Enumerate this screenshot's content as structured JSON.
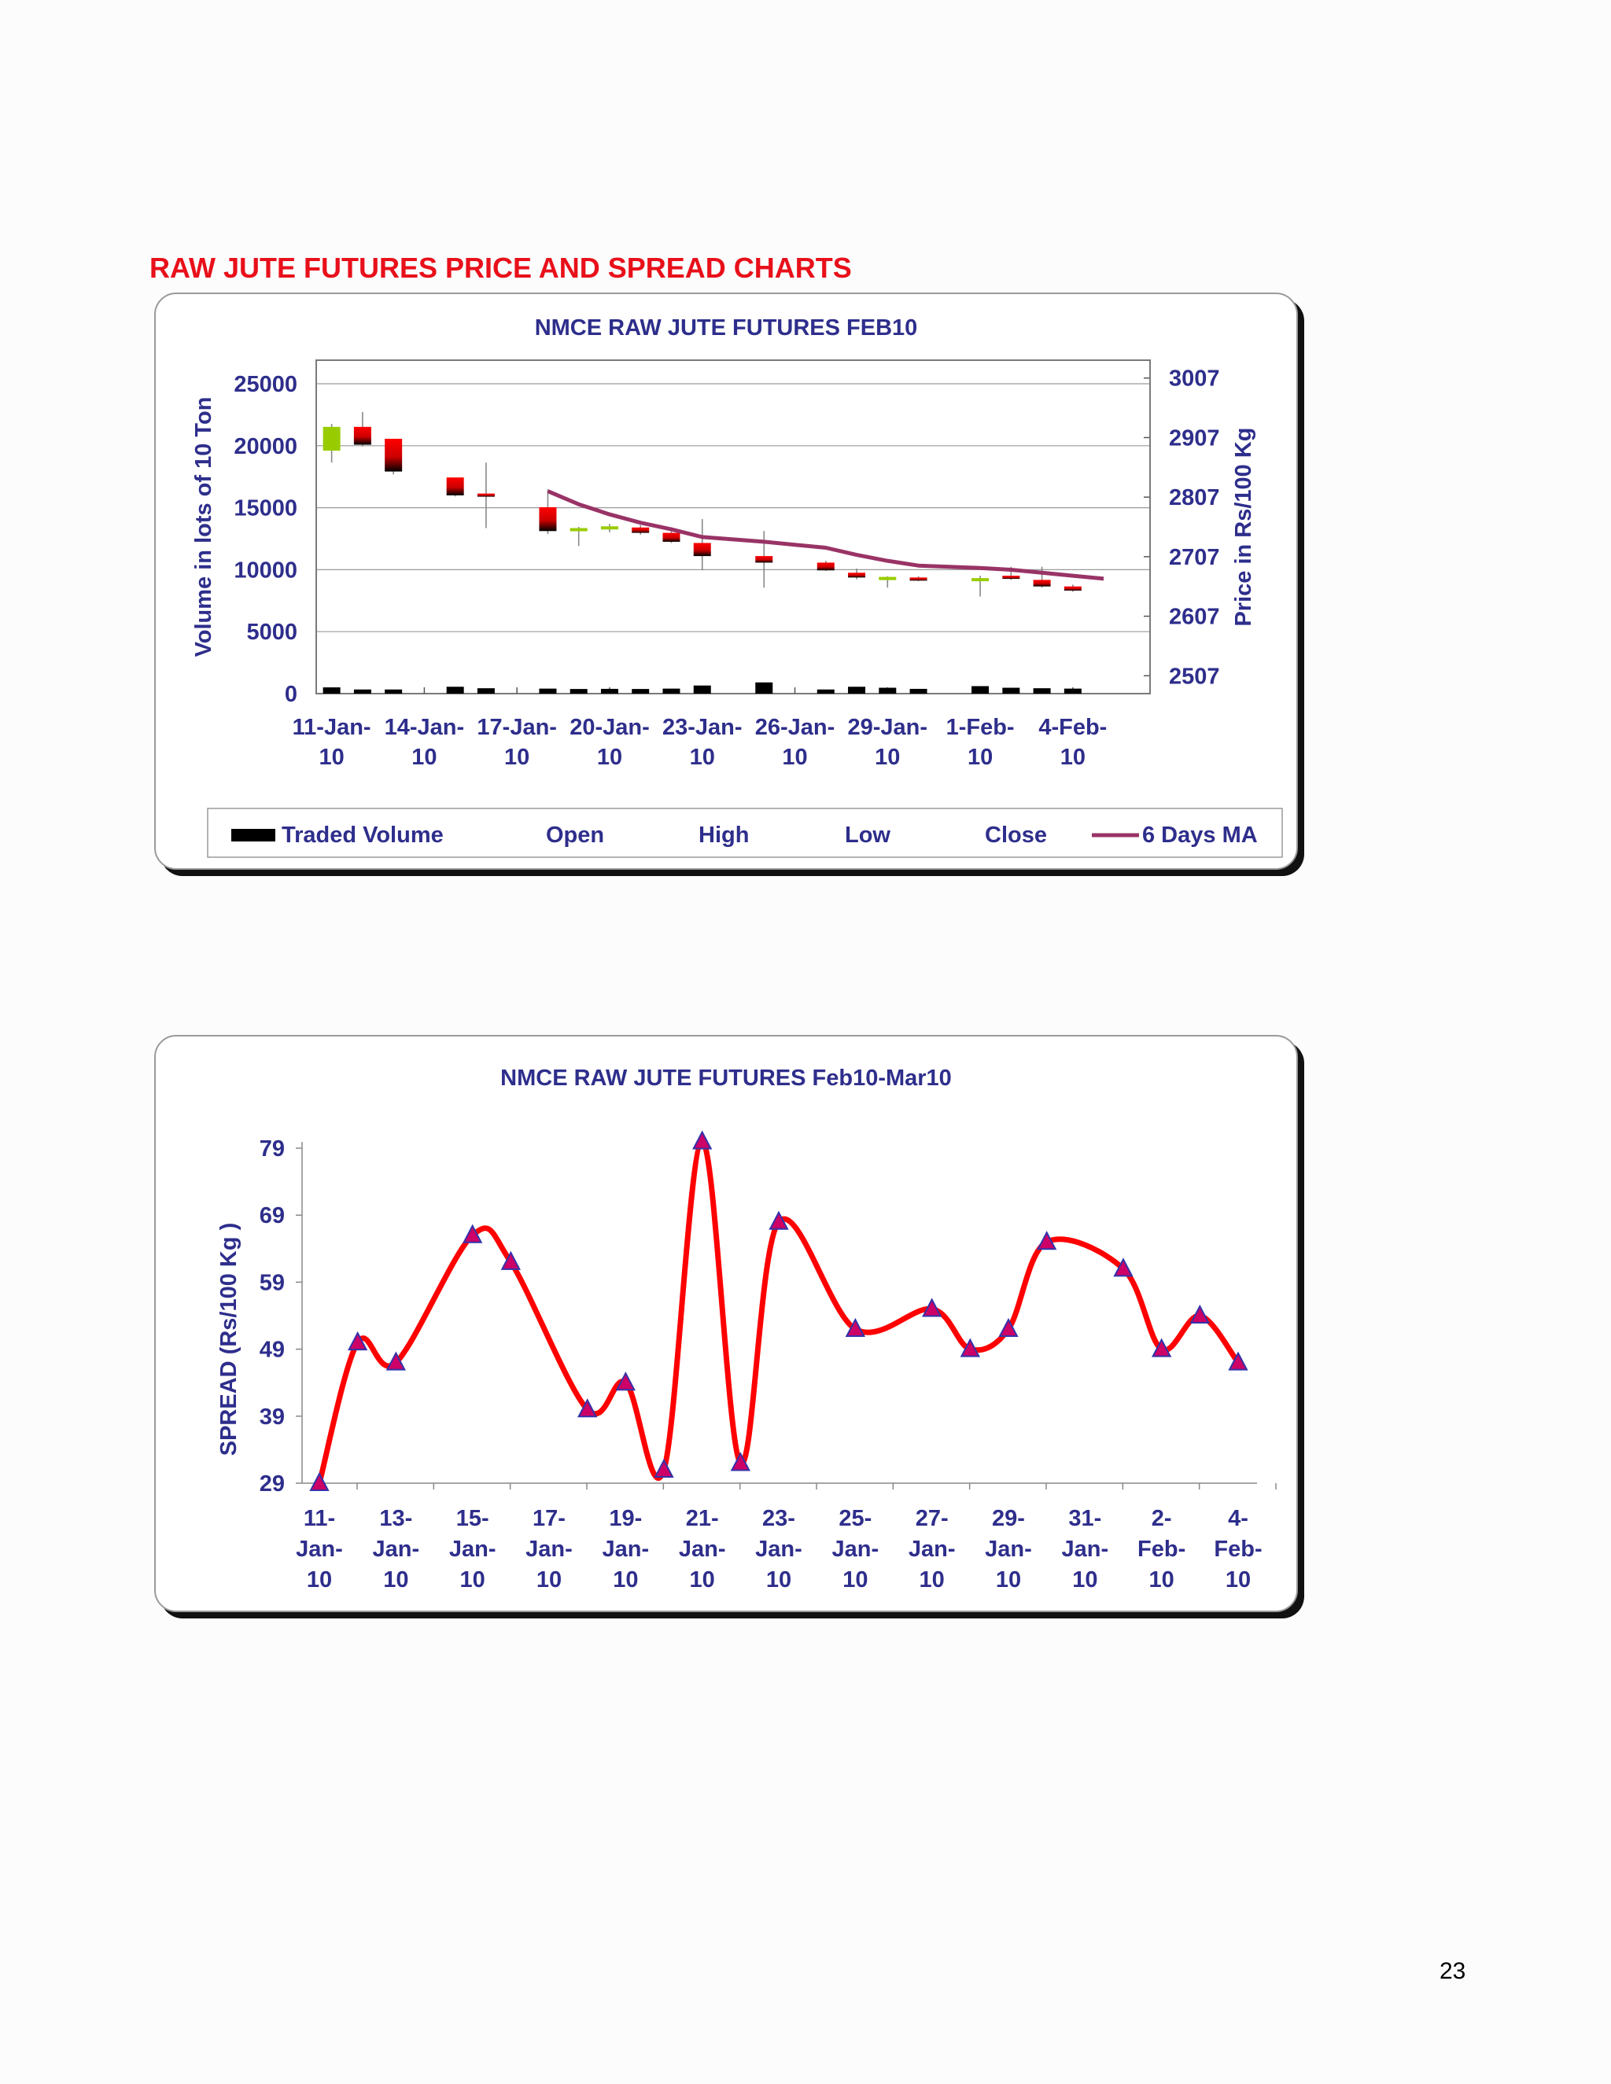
{
  "page": {
    "heading": "RAW JUTE FUTURES PRICE AND SPREAD CHARTS",
    "page_number": "23"
  },
  "chart_data": [
    {
      "type": "candlestick",
      "title": "NMCE RAW JUTE FUTURES FEB10",
      "y_left_label": "Volume in lots of 10 Ton",
      "y_right_label": "Price in Rs/100 Kg",
      "y_left_ticks": [
        "0",
        "5000",
        "10000",
        "15000",
        "20000",
        "25000"
      ],
      "y_left_range": [
        0,
        25000
      ],
      "y_right_ticks": [
        "2507",
        "2607",
        "2707",
        "2807",
        "2907",
        "3007"
      ],
      "y_right_range": [
        2477,
        3037
      ],
      "x_ticks": [
        [
          "11-Jan-",
          "10"
        ],
        [
          "14-Jan-",
          "10"
        ],
        [
          "17-Jan-",
          "10"
        ],
        [
          "20-Jan-",
          "10"
        ],
        [
          "23-Jan-",
          "10"
        ],
        [
          "26-Jan-",
          "10"
        ],
        [
          "29-Jan-",
          "10"
        ],
        [
          "1-Feb-",
          "10"
        ],
        [
          "4-Feb-",
          "10"
        ]
      ],
      "x_range_days": [
        11,
        37
      ],
      "legend": [
        "Traded Volume",
        "Open",
        "High",
        "Low",
        "Close",
        "6 Days MA"
      ],
      "grid": true,
      "colors": {
        "up": "#99cc00",
        "down": "#ff0000",
        "down_dark": "#000000",
        "ma": "#993366",
        "volume": "#000000"
      },
      "candles": [
        {
          "day": 11,
          "open": 2885,
          "close": 2925,
          "high": 2930,
          "low": 2865
        },
        {
          "day": 12,
          "open": 2925,
          "close": 2895,
          "high": 2950,
          "low": 2892
        },
        {
          "day": 13,
          "open": 2905,
          "close": 2850,
          "high": 2905,
          "low": 2845
        },
        {
          "day": 15,
          "open": 2840,
          "close": 2810,
          "high": 2840,
          "low": 2808
        },
        {
          "day": 16,
          "open": 2813,
          "close": 2810,
          "high": 2865,
          "low": 2755
        },
        {
          "day": 18,
          "open": 2790,
          "close": 2750,
          "high": 2820,
          "low": 2745
        },
        {
          "day": 19,
          "open": 2752,
          "close": 2755,
          "high": 2757,
          "low": 2725
        },
        {
          "day": 20,
          "open": 2755,
          "close": 2758,
          "high": 2762,
          "low": 2748
        },
        {
          "day": 21,
          "open": 2756,
          "close": 2747,
          "high": 2760,
          "low": 2744
        },
        {
          "day": 22,
          "open": 2747,
          "close": 2732,
          "high": 2750,
          "low": 2730
        },
        {
          "day": 23,
          "open": 2730,
          "close": 2708,
          "high": 2770,
          "low": 2684
        },
        {
          "day": 25,
          "open": 2708,
          "close": 2697,
          "high": 2750,
          "low": 2655
        },
        {
          "day": 27,
          "open": 2697,
          "close": 2684,
          "high": 2700,
          "low": 2683
        },
        {
          "day": 28,
          "open": 2680,
          "close": 2672,
          "high": 2687,
          "low": 2669
        },
        {
          "day": 29,
          "open": 2670,
          "close": 2673,
          "high": 2674,
          "low": 2655
        },
        {
          "day": 30,
          "open": 2672,
          "close": 2668,
          "high": 2674,
          "low": 2666
        },
        {
          "day": 32,
          "open": 2668,
          "close": 2671,
          "high": 2675,
          "low": 2640
        },
        {
          "day": 33,
          "open": 2675,
          "close": 2670,
          "high": 2690,
          "low": 2668
        },
        {
          "day": 34,
          "open": 2668,
          "close": 2657,
          "high": 2690,
          "low": 2655
        },
        {
          "day": 35,
          "open": 2657,
          "close": 2650,
          "high": 2660,
          "low": 2648
        }
      ],
      "volume": [
        {
          "day": 11,
          "value": 250
        },
        {
          "day": 12,
          "value": 80
        },
        {
          "day": 13,
          "value": 80
        },
        {
          "day": 15,
          "value": 300
        },
        {
          "day": 16,
          "value": 180
        },
        {
          "day": 18,
          "value": 150
        },
        {
          "day": 19,
          "value": 120
        },
        {
          "day": 20,
          "value": 130
        },
        {
          "day": 21,
          "value": 120
        },
        {
          "day": 22,
          "value": 150
        },
        {
          "day": 23,
          "value": 400
        },
        {
          "day": 25,
          "value": 650
        },
        {
          "day": 27,
          "value": 80
        },
        {
          "day": 28,
          "value": 300
        },
        {
          "day": 29,
          "value": 220
        },
        {
          "day": 30,
          "value": 130
        },
        {
          "day": 32,
          "value": 350
        },
        {
          "day": 33,
          "value": 220
        },
        {
          "day": 34,
          "value": 180
        },
        {
          "day": 35,
          "value": 150
        }
      ],
      "moving_average": [
        {
          "day": 18,
          "value": 2817
        },
        {
          "day": 19,
          "value": 2795
        },
        {
          "day": 20,
          "value": 2778
        },
        {
          "day": 21,
          "value": 2764
        },
        {
          "day": 22,
          "value": 2753
        },
        {
          "day": 23,
          "value": 2740
        },
        {
          "day": 25,
          "value": 2732
        },
        {
          "day": 27,
          "value": 2722
        },
        {
          "day": 28,
          "value": 2710
        },
        {
          "day": 29,
          "value": 2700
        },
        {
          "day": 30,
          "value": 2692
        },
        {
          "day": 32,
          "value": 2688
        },
        {
          "day": 33,
          "value": 2685
        },
        {
          "day": 34,
          "value": 2680
        },
        {
          "day": 35,
          "value": 2675
        },
        {
          "day": 36,
          "value": 2670
        }
      ]
    },
    {
      "type": "line",
      "title": "NMCE RAW JUTE FUTURES Feb10-Mar10",
      "ylabel": "SPREAD (Rs/100 Kg   )",
      "y_ticks": [
        "29",
        "39",
        "49",
        "59",
        "69",
        "79"
      ],
      "ylim": [
        29,
        79
      ],
      "x_ticks": [
        [
          "11-",
          "Jan-",
          "10"
        ],
        [
          "13-",
          "Jan-",
          "10"
        ],
        [
          "15-",
          "Jan-",
          "10"
        ],
        [
          "17-",
          "Jan-",
          "10"
        ],
        [
          "19-",
          "Jan-",
          "10"
        ],
        [
          "21-",
          "Jan-",
          "10"
        ],
        [
          "23-",
          "Jan-",
          "10"
        ],
        [
          "25-",
          "Jan-",
          "10"
        ],
        [
          "27-",
          "Jan-",
          "10"
        ],
        [
          "29-",
          "Jan-",
          "10"
        ],
        [
          "31-",
          "Jan-",
          "10"
        ],
        [
          "2-",
          "Feb-",
          "10"
        ],
        [
          "4-",
          "Feb-",
          "10"
        ]
      ],
      "x_range_days": [
        11,
        35.5
      ],
      "colors": {
        "line": "#ff0000",
        "marker": "#cc0066",
        "marker_edge": "#3333aa"
      },
      "series": [
        {
          "x": [
            11,
            12,
            13,
            15,
            16,
            18,
            19,
            20,
            21,
            22,
            23,
            25,
            27,
            28,
            29,
            30,
            32,
            33,
            34,
            35
          ],
          "values": [
            29,
            50,
            47,
            66,
            62,
            40,
            44,
            31,
            80,
            32,
            68,
            52,
            55,
            49,
            52,
            65,
            61,
            49,
            54,
            47
          ]
        }
      ]
    }
  ]
}
